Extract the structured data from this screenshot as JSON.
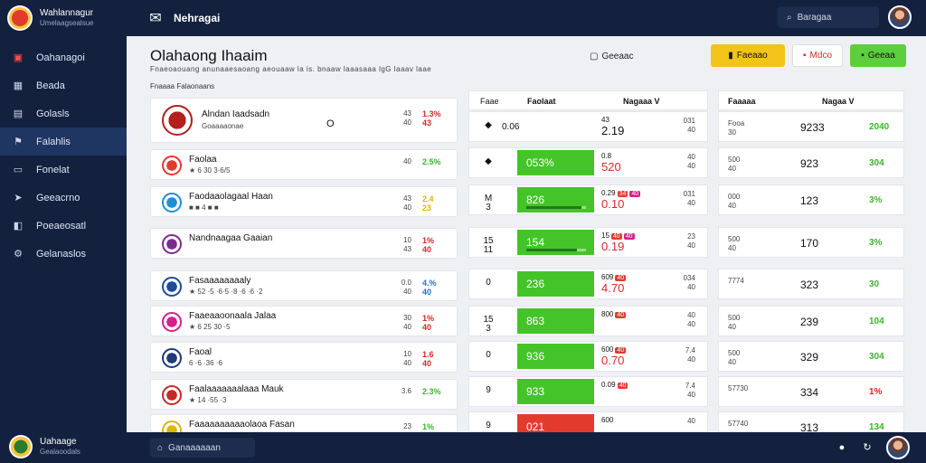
{
  "sidebar": {
    "brand_title": "Wahlannagur",
    "brand_sub": "Umelaagsealsue",
    "items": [
      {
        "label": "Oahanagoi",
        "icon": "dashboard-icon",
        "glyph": "▣"
      },
      {
        "label": "Beada",
        "icon": "grid-icon",
        "glyph": "▦"
      },
      {
        "label": "Golasls",
        "icon": "clipboard-icon",
        "glyph": "▤"
      },
      {
        "label": "Falahlis",
        "icon": "flag-icon",
        "glyph": "⚑"
      },
      {
        "label": "Fonelat",
        "icon": "monitor-icon",
        "glyph": "▭"
      },
      {
        "label": "Geeacrno",
        "icon": "send-icon",
        "glyph": "➤"
      },
      {
        "label": "Poeaeosatl",
        "icon": "chart-icon",
        "glyph": "◧"
      },
      {
        "label": "Gelanaslos",
        "icon": "settings-icon",
        "glyph": "⚙"
      }
    ],
    "foot_title": "Uahaage",
    "foot_sub": "Gealaoodals"
  },
  "topbar": {
    "title": "Nehragai",
    "search_placeholder": "Baragaa"
  },
  "header": {
    "title": "Olahaong Ihaaim",
    "subtitle": "Fnaeoaouang anunaaesaoang aeouaaw la is. bnaaw laaasaaa lgG laaav laae",
    "section_label": "Fnaaaa Falaonaans",
    "center_label": "Geeaac",
    "btn_yellow": "Faeaao",
    "btn_white": "Mdco",
    "btn_green": "Geeaa"
  },
  "teams": [
    {
      "name": "Alndan Iaadsadn",
      "meta": "Goaaaaonae",
      "mid": "O",
      "a": [
        "43",
        "40"
      ],
      "b": [
        "1.3%",
        "43"
      ],
      "bcolor": "r",
      "crest": "#b31e1e"
    },
    {
      "name": "Faolaa",
      "meta": "★ 6 30 3·6/5",
      "mid": "",
      "a": [
        "40"
      ],
      "b": [
        "2.5%"
      ],
      "bcolor": "g",
      "crest": "#e23b2e"
    },
    {
      "name": "Faodaaolagaal Haan",
      "meta": "■ ■ 4 ■ ■",
      "mid": "",
      "a": [
        "43",
        "40"
      ],
      "b": [
        "2.4",
        "23"
      ],
      "bcolor": "y",
      "crest": "#1d8fd4"
    },
    {
      "name": "Nandnaagaa Gaaian",
      "meta": "",
      "mid": "",
      "a": [
        "10",
        "43"
      ],
      "b": [
        "1%",
        "40"
      ],
      "bcolor": "r",
      "crest": "#7a2c8e"
    },
    {
      "name": "Fasaaaaaaaaly",
      "meta": "★ 52 ·5 ·6·5 ·8 ·6 ·6 ·2",
      "mid": "",
      "a": [
        "0.0",
        "40"
      ],
      "b": [
        "4.%",
        "40"
      ],
      "bcolor": "bl",
      "crest": "#1e4a9a"
    },
    {
      "name": "Faaeaaoonaala Jalaa",
      "meta": "★ 6 25 30 ·5",
      "mid": "",
      "a": [
        "30",
        "40"
      ],
      "b": [
        "1%",
        "40"
      ],
      "bcolor": "r",
      "crest": "#d6208a"
    },
    {
      "name": "Faoal",
      "meta": "6 ·6 ·36 ·6",
      "mid": "",
      "a": [
        "10",
        "40"
      ],
      "b": [
        "1.6",
        "40"
      ],
      "bcolor": "r",
      "crest": "#1e3a7a"
    },
    {
      "name": "Faalaaaaaaalaaa Mauk",
      "meta": "★ 14 ·55 ·3",
      "mid": "",
      "a": [
        "3.6"
      ],
      "b": [
        "2.3%"
      ],
      "bcolor": "g",
      "crest": "#c82828"
    },
    {
      "name": "Faaaaaaaaaaolaoa Fasan",
      "meta": "★ 23 ·4",
      "mid": "",
      "a": [
        "23"
      ],
      "b": [
        "1%"
      ],
      "bcolor": "g",
      "crest": "#d9b800"
    }
  ],
  "middle": {
    "col1": "Faae",
    "col2": "Faolaat",
    "col3": "Nagaaa V",
    "rows": [
      {
        "idx": "◆",
        "val": "0.06",
        "bar": "",
        "pct": 0,
        "barcolor": "",
        "num": "2.19",
        "num_top": "43",
        "tags": [],
        "r": [
          "031",
          "40"
        ]
      },
      {
        "idx": "◆",
        "val": "",
        "bar": "053%",
        "pct": 0,
        "barcolor": "g",
        "num": "520",
        "num_top": "0.8",
        "tags": [],
        "r": [
          "40",
          "40"
        ]
      },
      {
        "idx": "M 3",
        "val": "",
        "bar": "826",
        "pct": 92,
        "barcolor": "g",
        "num": "0.10",
        "num_top": "0.29",
        "tags": [
          "34",
          "40"
        ],
        "r": [
          "031",
          "40"
        ]
      },
      {
        "idx": "15 11",
        "val": "",
        "bar": "154",
        "pct": 85,
        "barcolor": "g",
        "num": "0.19",
        "num_top": "15",
        "tags": [
          "40",
          "40"
        ],
        "r": [
          "23",
          "40"
        ]
      },
      {
        "idx": "0",
        "val": "",
        "bar": "236",
        "pct": 0,
        "barcolor": "g",
        "num": "4.70",
        "num_top": "609",
        "tags": [
          "40"
        ],
        "r": [
          "034",
          "40"
        ]
      },
      {
        "idx": "15 3",
        "val": "",
        "bar": "863",
        "pct": 0,
        "barcolor": "g",
        "num": "",
        "num_top": "800",
        "tags": [
          "40"
        ],
        "r": [
          "40",
          "40"
        ]
      },
      {
        "idx": "0",
        "val": "",
        "bar": "936",
        "pct": 0,
        "barcolor": "g",
        "num": "0.70",
        "num_top": "600",
        "tags": [
          "40"
        ],
        "r": [
          "7.4",
          "40"
        ]
      },
      {
        "idx": "9",
        "val": "",
        "bar": "933",
        "pct": 0,
        "barcolor": "g",
        "num": "",
        "num_top": "0.09",
        "tags": [
          "40"
        ],
        "r": [
          "7.4",
          "40"
        ]
      },
      {
        "idx": "9",
        "val": "",
        "bar": "021",
        "pct": 0,
        "barcolor": "r",
        "num": "",
        "num_top": "600",
        "tags": [],
        "r": [
          "40"
        ]
      }
    ]
  },
  "right": {
    "col1": "Faaaaa",
    "col2": "Nagaa V",
    "rows": [
      {
        "a": [
          "Fooa",
          "30"
        ],
        "b": "9233",
        "c": "2040",
        "ccolor": "g"
      },
      {
        "a": [
          "500",
          "40"
        ],
        "b": "923",
        "c": "304",
        "ccolor": "g"
      },
      {
        "a": [
          "000",
          "40"
        ],
        "b": "123",
        "c": "3%",
        "ccolor": "g"
      },
      {
        "a": [
          "500",
          "40"
        ],
        "b": "170",
        "c": "3%",
        "ccolor": "g"
      },
      {
        "a": [
          "7774"
        ],
        "b": "323",
        "c": "30",
        "ccolor": "g"
      },
      {
        "a": [
          "500",
          "40"
        ],
        "b": "239",
        "c": "104",
        "ccolor": "g"
      },
      {
        "a": [
          "500",
          "40"
        ],
        "b": "329",
        "c": "304",
        "ccolor": "g"
      },
      {
        "a": [
          "57730"
        ],
        "b": "334",
        "c": "1%",
        "ccolor": "r"
      },
      {
        "a": [
          "57740"
        ],
        "b": "313",
        "c": "134",
        "ccolor": "g"
      }
    ]
  },
  "bottombar": {
    "input_placeholder": "Ganaaaaaan"
  },
  "colors": {
    "nav_bg": "#13213f",
    "accent_green": "#45c429",
    "accent_red": "#e23b2e",
    "accent_yellow": "#f2c419"
  }
}
